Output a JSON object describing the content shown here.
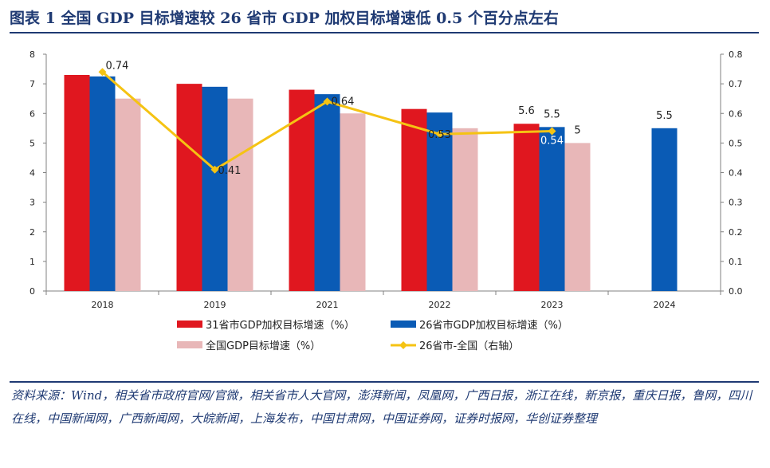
{
  "figure": {
    "title": "图表 1   全国 GDP 目标增速较 26 省市 GDP 加权目标增速低 0.5 个百分点左右",
    "source": "资料来源：Wind，相关省市政府官网/官微，相关省市人大官网，澎湃新闻，凤凰网，广西日报，浙江在线，新京报，重庆日报，鲁网，四川在线，中国新闻网，广西新闻网，大皖新闻，上海发布，中国甘肃网，中国证券网，证券时报网，华创证券整理"
  },
  "colors": {
    "title": "#1f3a73",
    "s31": "#e0171f",
    "s26": "#0a5bb5",
    "national": "#e8b7b8",
    "diff": "#f5c313",
    "axis": "#808080"
  },
  "chart_data": {
    "type": "bar",
    "categories": [
      "2018",
      "2019",
      "2021",
      "2022",
      "2023",
      "2024"
    ],
    "ylim": [
      0,
      8
    ],
    "yticks": [
      "0",
      "1",
      "2",
      "3",
      "4",
      "5",
      "6",
      "7",
      "8"
    ],
    "y2lim": [
      0,
      0.8
    ],
    "y2ticks": [
      "0.0",
      "0.1",
      "0.2",
      "0.3",
      "0.4",
      "0.5",
      "0.6",
      "0.7",
      "0.8"
    ],
    "series": [
      {
        "name": "31省市GDP加权目标增速（%）",
        "type": "bar",
        "color": "#e0171f",
        "values": [
          7.3,
          7.0,
          6.8,
          6.15,
          5.65,
          null
        ]
      },
      {
        "name": "26省市GDP加权目标增速（%）",
        "type": "bar",
        "color": "#0a5bb5",
        "values": [
          7.25,
          6.9,
          6.65,
          6.03,
          5.54,
          5.5
        ]
      },
      {
        "name": "全国GDP目标增速（%）",
        "type": "bar",
        "color": "#e8b7b8",
        "values": [
          6.5,
          6.5,
          6.0,
          5.5,
          5.0,
          null
        ]
      },
      {
        "name": "26省市-全国（右轴）",
        "type": "line",
        "axis": "right",
        "color": "#f5c313",
        "values": [
          0.74,
          0.41,
          0.64,
          0.53,
          0.54,
          null
        ]
      }
    ],
    "data_labels": [
      {
        "text": "0.74",
        "category": 0,
        "series": 3
      },
      {
        "text": "0.41",
        "category": 1,
        "series": 3
      },
      {
        "text": "0.64",
        "category": 2,
        "series": 3
      },
      {
        "text": "0.53",
        "category": 3,
        "series": 3
      },
      {
        "text": "0.54",
        "category": 4,
        "series": 3
      },
      {
        "text": "5.6",
        "category": 4,
        "series": 0
      },
      {
        "text": "5.5",
        "category": 4,
        "series": 1
      },
      {
        "text": "5",
        "category": 4,
        "series": 2
      },
      {
        "text": "5.5",
        "category": 5,
        "series": 1
      }
    ],
    "legend": "bottom",
    "grid": false
  }
}
